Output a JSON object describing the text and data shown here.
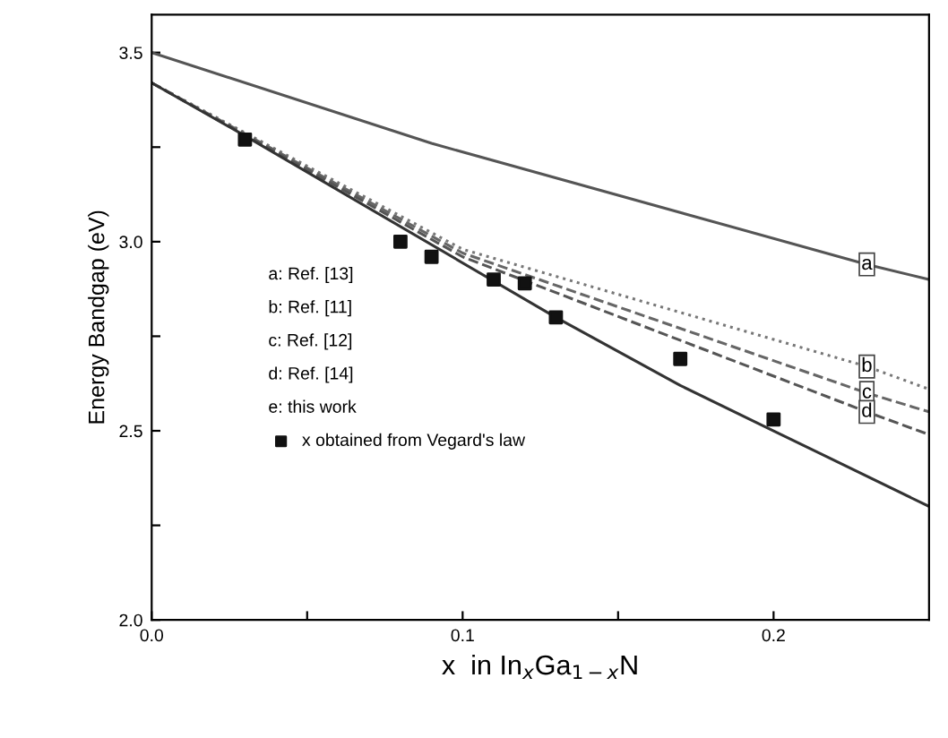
{
  "chart_data": {
    "type": "line",
    "xlabel": "x  in In$_{x}$Ga$_{1−x}$N",
    "ylabel": "Energy Bandgap (eV)",
    "xlim": [
      0,
      0.25
    ],
    "ylim": [
      2.0,
      3.6
    ],
    "xticks": [
      {
        "value": 0,
        "label": "0.0"
      },
      {
        "value": 0.05,
        "label": null
      },
      {
        "value": 0.1,
        "label": "0.1"
      },
      {
        "value": 0.15,
        "label": null
      },
      {
        "value": 0.2,
        "label": "0.2"
      }
    ],
    "yticks": [
      {
        "value": 2.0,
        "label": "2.0"
      },
      {
        "value": 2.25,
        "label": null
      },
      {
        "value": 2.5,
        "label": "2.5"
      },
      {
        "value": 2.75,
        "label": null
      },
      {
        "value": 3.0,
        "label": "3.0"
      },
      {
        "value": 3.25,
        "label": null
      },
      {
        "value": 3.5,
        "label": "3.5"
      }
    ],
    "grid": false,
    "legend": "left",
    "series": [
      {
        "type": "line",
        "name": "a",
        "color": "#555555",
        "line_style": "solid",
        "x": [
          0,
          0.09,
          0.23,
          0.25
        ],
        "values": [
          3.5,
          3.26,
          2.94,
          2.9
        ]
      },
      {
        "type": "line",
        "name": "b",
        "color": "#777777",
        "line_style": "dotted",
        "x": [
          0,
          0.1,
          0.23,
          0.25
        ],
        "values": [
          3.42,
          2.98,
          2.67,
          2.61
        ]
      },
      {
        "type": "line",
        "name": "c",
        "color": "#666666",
        "line_style": "dashed",
        "x": [
          0,
          0.1,
          0.23,
          0.25
        ],
        "values": [
          3.42,
          2.97,
          2.6,
          2.55
        ]
      },
      {
        "type": "line",
        "name": "d",
        "color": "#555555",
        "line_style": "dashed",
        "x": [
          0,
          0.1,
          0.23,
          0.25
        ],
        "values": [
          3.42,
          2.96,
          2.55,
          2.49
        ]
      },
      {
        "type": "line",
        "color": "#333333",
        "line_style": "solid",
        "x": [
          0,
          0.03,
          0.13,
          0.17,
          0.2,
          0.25
        ],
        "values": [
          3.42,
          3.28,
          2.8,
          2.62,
          2.5,
          2.3
        ]
      },
      {
        "type": "scatter",
        "name": "x obtained from Vegard's law",
        "color": "#111111",
        "marker": "square",
        "x": [
          0.03,
          0.08,
          0.09,
          0.11,
          0.12,
          0.13,
          0.17,
          0.2
        ],
        "values": [
          3.27,
          3.0,
          2.96,
          2.9,
          2.89,
          2.8,
          2.69,
          2.53
        ]
      }
    ],
    "annotations": [
      "a: Ref. [13]",
      "b: Ref. [11]",
      "c: Ref. [12]",
      "d: Ref. [14]",
      "e: this work"
    ]
  }
}
